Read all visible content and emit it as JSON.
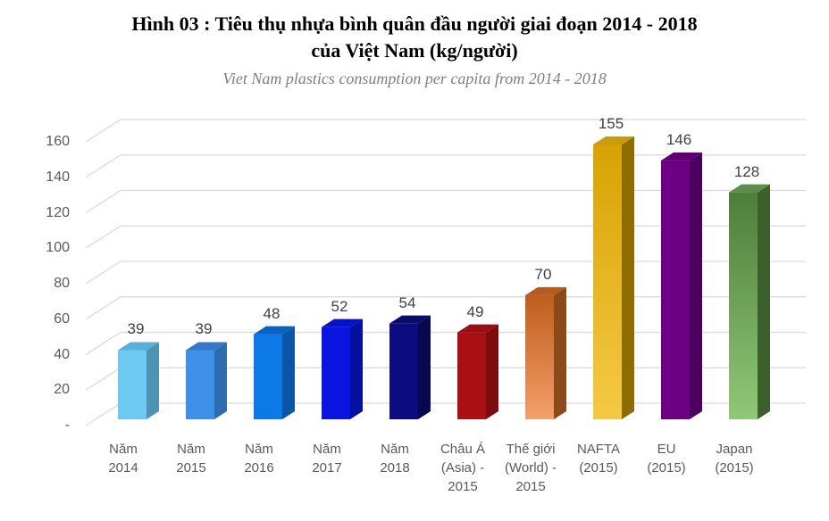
{
  "header": {
    "title_line1": "Hình  03 : Tiêu thụ nhựa bình quân  đầu người giai đoạn  2014 - 2018",
    "title_line2": "của Việt Nam (kg/người)",
    "subtitle": "Viet Nam plastics consumption per capita from 2014 - 2018"
  },
  "colors": {
    "background": "#FFFFFF",
    "gridline": "#D9D9D9",
    "axis_text": "#595959",
    "value_label_text": "#3F3F3F",
    "title_text": "#000000",
    "subtitle_text": "#7F7F7F"
  },
  "chart_data": {
    "type": "bar",
    "effect": "3d-column",
    "title": "Hình 03 : Tiêu thụ nhựa bình quân đầu người giai đoạn 2014 - 2018 của Việt Nam (kg/người)",
    "subtitle": "Viet Nam plastics consumption per capita from 2014 - 2018",
    "xlabel": "",
    "ylabel": "",
    "ylim": [
      0,
      160
    ],
    "y_tick_step": 20,
    "grid": true,
    "legend": false,
    "y_ticks": [
      {
        "value": 160,
        "label": "160"
      },
      {
        "value": 140,
        "label": "140"
      },
      {
        "value": 120,
        "label": "120"
      },
      {
        "value": 100,
        "label": "100"
      },
      {
        "value": 80,
        "label": "80"
      },
      {
        "value": 60,
        "label": "60"
      },
      {
        "value": 40,
        "label": "40"
      },
      {
        "value": 20,
        "label": "20"
      },
      {
        "value": 0,
        "label": "-"
      }
    ],
    "categories": [
      "Năm 2014",
      "Năm 2015",
      "Năm 2016",
      "Năm 2017",
      "Năm 2018",
      "Châu Á (Asia) - 2015",
      "Thế giới (World) - 2015",
      "NAFTA (2015)",
      "EU (2015)",
      "Japan (2015)"
    ],
    "category_label_lines": [
      [
        "Năm",
        "2014"
      ],
      [
        "Năm",
        "2015"
      ],
      [
        "Năm",
        "2016"
      ],
      [
        "Năm",
        "2017"
      ],
      [
        "Năm",
        "2018"
      ],
      [
        "Châu Á",
        "(Asia) -",
        "2015"
      ],
      [
        "Thế giới",
        "(World) -",
        "2015"
      ],
      [
        "NAFTA",
        "(2015)"
      ],
      [
        "EU",
        "(2015)"
      ],
      [
        "Japan",
        "(2015)"
      ]
    ],
    "values": [
      39,
      39,
      48,
      52,
      54,
      49,
      70,
      155,
      146,
      128
    ],
    "bar_colors": [
      {
        "front": "#6EC9F2",
        "side": "#4E92B4",
        "top": "#57B0DC"
      },
      {
        "front": "#3F90E8",
        "side": "#2E6CB0",
        "top": "#3578C8"
      },
      {
        "front": "#0D78E8",
        "side": "#0A55A5",
        "top": "#0B62C0"
      },
      {
        "front": "#0A14E0",
        "side": "#0510A0",
        "top": "#0712C4"
      },
      {
        "front": "#0C0C80",
        "side": "#08084E",
        "top": "#0A0A6A"
      },
      {
        "front": "#A91014",
        "side": "#7D0C0F",
        "top": "#991013"
      },
      {
        "front": "#BE5E1D",
        "front2": "#F49F6A",
        "side": "#8C4A1A",
        "top": "#B25C20"
      },
      {
        "front": "#D7A303",
        "front2": "#F5C945",
        "side": "#8E6D00",
        "top": "#C79C10"
      },
      {
        "front": "#6B0082",
        "side": "#4D005E",
        "top": "#5E0072"
      },
      {
        "front": "#4E7D3A",
        "front2": "#90C877",
        "side": "#3C602C",
        "top": "#5E8F4A"
      }
    ]
  }
}
